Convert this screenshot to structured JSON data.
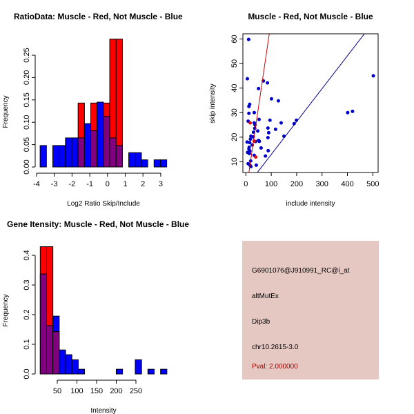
{
  "chart_data": [
    {
      "type": "bar",
      "title": "RatioData: Muscle - Red, Not Muscle - Blue",
      "xlabel": "Log2 Ratio Skip/Include",
      "ylabel": "Frequency",
      "bin_start": -3.8,
      "bin_width": 0.357,
      "xticks": [
        -4,
        -3,
        -2,
        -1,
        0,
        1,
        2,
        3
      ],
      "yticks": [
        0.0,
        0.05,
        0.1,
        0.15,
        0.2,
        0.25
      ],
      "ytick_labels": [
        "0.00",
        "0.05",
        "0.10",
        "0.15",
        "0.20",
        "0.25"
      ],
      "series": [
        {
          "name": "Not Muscle",
          "color": "#0000ff",
          "values": [
            0.048,
            0,
            0.048,
            0.048,
            0.065,
            0.065,
            0.065,
            0.097,
            0.081,
            0.145,
            0.113,
            0.065,
            0.048,
            0,
            0.032,
            0.032,
            0.016,
            0,
            0.016,
            0.016
          ]
        },
        {
          "name": "Muscle",
          "color": "#ff0000",
          "values": [
            0,
            0,
            0,
            0,
            0,
            0,
            0.143,
            0,
            0.143,
            0,
            0.143,
            0.286,
            0.286,
            0,
            0,
            0,
            0,
            0,
            0,
            0
          ]
        }
      ],
      "overlap_color": "#800080"
    },
    {
      "type": "scatter",
      "title": "Muscle - Red, Not Muscle - Blue",
      "xlabel": "include intensity",
      "ylabel": "skip intensity",
      "xlim": [
        -11.7,
        520.8
      ],
      "ylim": [
        5.6,
        62.1
      ],
      "xticks": [
        0,
        100,
        200,
        300,
        400,
        500
      ],
      "yticks": [
        10,
        20,
        30,
        40,
        50,
        60
      ],
      "series": [
        {
          "name": "Not Muscle",
          "color": "#0000cd",
          "points": [
            [
              11,
              59.8
            ],
            [
              6,
              43.8
            ],
            [
              69,
              42.9
            ],
            [
              85,
              42.1
            ],
            [
              50,
              39.8
            ],
            [
              101,
              35.6
            ],
            [
              128,
              34.8
            ],
            [
              15,
              33.4
            ],
            [
              12,
              32.5
            ],
            [
              12,
              29.7
            ],
            [
              33,
              30
            ],
            [
              9,
              26.5
            ],
            [
              52,
              27.2
            ],
            [
              95,
              26.9
            ],
            [
              33,
              25.8
            ],
            [
              139,
              25.8
            ],
            [
              199,
              26.9
            ],
            [
              190,
              25.5
            ],
            [
              36,
              25
            ],
            [
              35,
              23.6
            ],
            [
              87,
              23.7
            ],
            [
              47,
              22.5
            ],
            [
              117,
              23.2
            ],
            [
              30,
              22
            ],
            [
              90,
              21.8
            ],
            [
              20,
              20.4
            ],
            [
              150,
              20.4
            ],
            [
              29,
              20.1
            ],
            [
              87,
              19.8
            ],
            [
              18,
              19.2
            ],
            [
              5,
              18
            ],
            [
              50,
              18.7
            ],
            [
              53,
              18.3
            ],
            [
              38,
              18.2
            ],
            [
              15,
              17.8
            ],
            [
              25,
              16.8
            ],
            [
              13,
              15.9
            ],
            [
              60,
              15.6
            ],
            [
              12,
              15.2
            ],
            [
              16,
              14.4
            ],
            [
              88,
              14.5
            ],
            [
              7,
              13.8
            ],
            [
              14,
              13.3
            ],
            [
              33,
              12.6
            ],
            [
              77,
              12.3
            ],
            [
              19,
              10.3
            ],
            [
              9,
              9.2
            ],
            [
              16,
              8.6
            ],
            [
              41,
              8.6
            ],
            [
              20,
              8
            ],
            [
              401,
              30
            ],
            [
              420,
              30.5
            ],
            [
              502,
              45
            ]
          ]
        },
        {
          "name": "Muscle",
          "color": "#e01010",
          "points": [
            [
              17,
              25.8
            ],
            [
              33,
              18.4
            ],
            [
              39,
              11.9
            ]
          ]
        }
      ],
      "lines": [
        {
          "name": "Muscle fit",
          "color": "#cc0000",
          "intercept": -2.9,
          "slope": 0.705
        },
        {
          "name": "Not Muscle fit",
          "color": "#00008b",
          "intercept": -0.45,
          "slope": 0.134
        }
      ]
    },
    {
      "type": "bar",
      "title": "Gene Itensity: Muscle - Red, Not Muscle - Blue",
      "xlabel": "Intensity",
      "ylabel": "Frequency",
      "bin_start": 6.7,
      "bin_width": 16.1,
      "xticks": [
        50,
        100,
        150,
        200,
        250
      ],
      "yticks": [
        0.0,
        0.1,
        0.2,
        0.3,
        0.4
      ],
      "ytick_labels": [
        "0.0",
        "0.1",
        "0.2",
        "0.3",
        "0.4"
      ],
      "series": [
        {
          "name": "Not Muscle",
          "color": "#0000ff",
          "values": [
            0.337,
            0.163,
            0.195,
            0.081,
            0.065,
            0.048,
            0.016,
            0,
            0,
            0,
            0,
            0,
            0.016,
            0,
            0,
            0.048,
            0,
            0.016,
            0,
            0.016
          ]
        },
        {
          "name": "Muscle",
          "color": "#ff0000",
          "values": [
            0.429,
            0.429,
            0.143,
            0,
            0,
            0,
            0,
            0,
            0,
            0,
            0,
            0,
            0,
            0,
            0,
            0,
            0,
            0,
            0,
            0
          ]
        }
      ],
      "overlap_color": "#800080"
    }
  ],
  "info": {
    "probe": "G6901076@J910991_RC@i_at",
    "event": "altMutEx",
    "gene": "Dip3b",
    "location": "chr10.2615-3.0",
    "pval": "Pval: 2.000000"
  }
}
